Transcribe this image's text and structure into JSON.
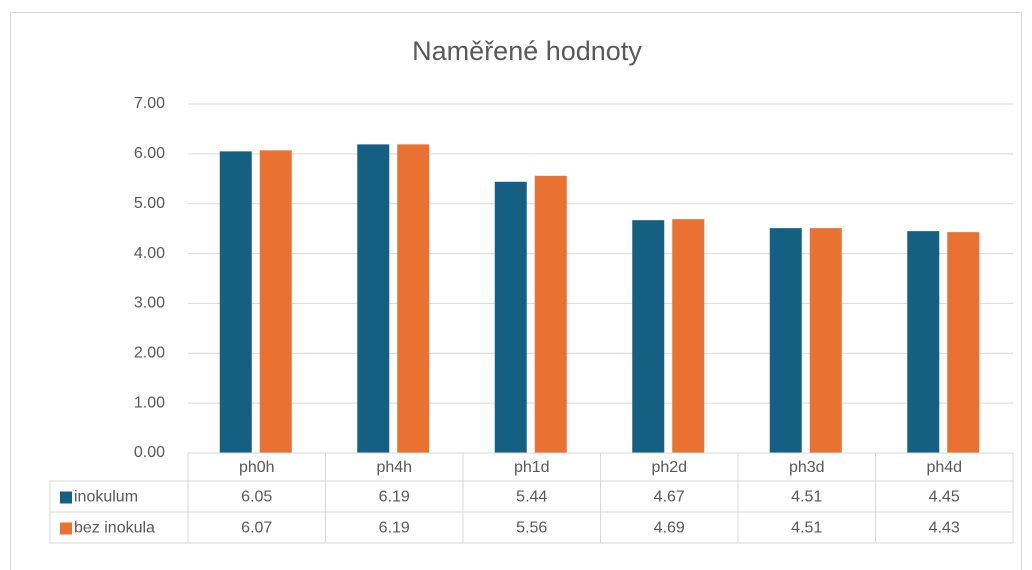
{
  "chart_data": {
    "type": "bar",
    "title": "Naměřené hodnoty",
    "categories": [
      "ph0h",
      "ph4h",
      "ph1d",
      "ph2d",
      "ph3d",
      "ph4d"
    ],
    "series": [
      {
        "name": "inokulum",
        "color": "#156082",
        "values": [
          6.05,
          6.19,
          5.44,
          4.67,
          4.51,
          4.45
        ]
      },
      {
        "name": "bez inokula",
        "color": "#e97132",
        "values": [
          6.07,
          6.19,
          5.56,
          4.69,
          4.51,
          4.43
        ]
      }
    ],
    "ylim": [
      0,
      7
    ],
    "yticks": [
      {
        "value": 0,
        "label": "0.00"
      },
      {
        "value": 1,
        "label": "1.00"
      },
      {
        "value": 2,
        "label": "2.00"
      },
      {
        "value": 3,
        "label": "3.00"
      },
      {
        "value": 4,
        "label": "4.00"
      },
      {
        "value": 5,
        "label": "5.00"
      },
      {
        "value": 6,
        "label": "6.00"
      },
      {
        "value": 7,
        "label": "7.00"
      }
    ],
    "grid": true,
    "data_table": true
  }
}
